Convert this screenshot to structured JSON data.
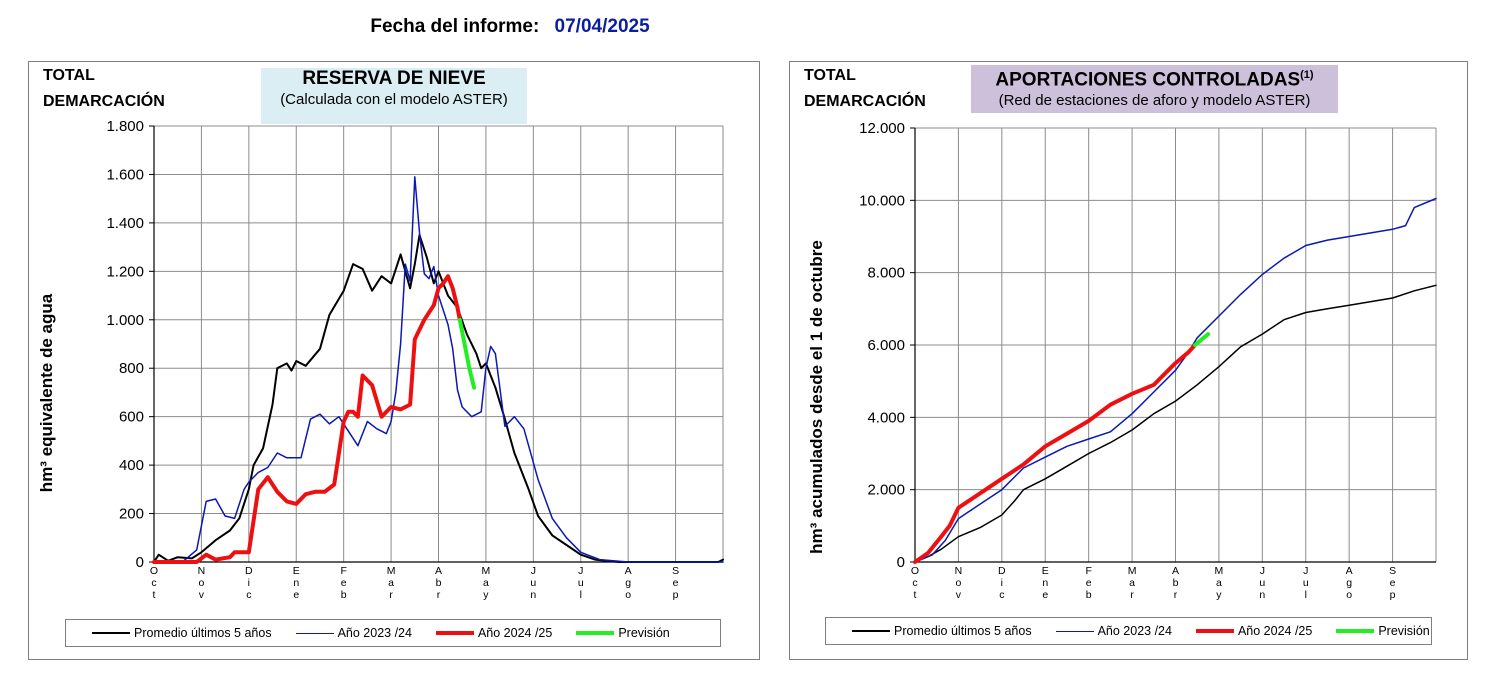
{
  "report": {
    "label": "Fecha del informe:",
    "date": "07/04/2025"
  },
  "colors": {
    "promedio": "#000000",
    "y2324": "#0a18b4",
    "y2425": "#ee1010",
    "prevision": "#22ee22",
    "title_left_bg": "#daeef3",
    "title_right_bg": "#ccc0da",
    "report_date": "#0c1e9e"
  },
  "legend": [
    {
      "name": "Promedio últimos 5 años",
      "color": "#000000",
      "width": 2
    },
    {
      "name": "Año 2023 /24",
      "color": "#0a18b4",
      "width": 1.5
    },
    {
      "name": "Año 2024 /25",
      "color": "#ee1010",
      "width": 4
    },
    {
      "name": "Previsión",
      "color": "#22ee22",
      "width": 4
    }
  ],
  "panels": [
    {
      "region_line1": "TOTAL",
      "region_line2": "DEMARCACIÓN",
      "title": "RESERVA DE NIEVE",
      "subtitle": "(Calculada con el modelo ASTER)",
      "ylabel": "hm³ equivalente de agua"
    },
    {
      "region_line1": "TOTAL",
      "region_line2": "DEMARCACIÓN",
      "title": "APORTACIONES CONTROLADAS",
      "title_sup": "(1)",
      "subtitle": "(Red de estaciones de aforo y modelo ASTER)",
      "ylabel": "hm³ acumulados desde el 1 de octubre"
    }
  ],
  "chart_data": [
    {
      "type": "line",
      "title": "RESERVA DE NIEVE",
      "subtitle": "(Calculada con el modelo ASTER)",
      "ylabel": "hm³ equivalente de agua",
      "months": [
        "Oct",
        "Nov",
        "Dic",
        "Ene",
        "Feb",
        "Mar",
        "Abr",
        "May",
        "Jun",
        "Jul",
        "Ago",
        "Sep"
      ],
      "xlim": [
        0,
        12
      ],
      "ylim": [
        0,
        1800
      ],
      "yticks": [
        0,
        200,
        400,
        600,
        800,
        1000,
        1200,
        1400,
        1600,
        1800
      ],
      "ytick_labels": [
        "0",
        "200",
        "400",
        "600",
        "800",
        "1.000",
        "1.200",
        "1.400",
        "1.600",
        "1.800"
      ],
      "grid": true,
      "legend_position": "bottom",
      "series": [
        {
          "name": "Promedio últimos 5 años",
          "color": "#000000",
          "width": 2,
          "points": [
            [
              0,
              0
            ],
            [
              0.1,
              30
            ],
            [
              0.3,
              5
            ],
            [
              0.5,
              20
            ],
            [
              0.8,
              15
            ],
            [
              1.0,
              40
            ],
            [
              1.3,
              90
            ],
            [
              1.6,
              130
            ],
            [
              1.8,
              180
            ],
            [
              2.0,
              300
            ],
            [
              2.1,
              400
            ],
            [
              2.3,
              470
            ],
            [
              2.5,
              650
            ],
            [
              2.6,
              800
            ],
            [
              2.8,
              820
            ],
            [
              2.9,
              790
            ],
            [
              3.0,
              830
            ],
            [
              3.2,
              810
            ],
            [
              3.5,
              880
            ],
            [
              3.7,
              1020
            ],
            [
              4.0,
              1120
            ],
            [
              4.2,
              1230
            ],
            [
              4.4,
              1210
            ],
            [
              4.6,
              1120
            ],
            [
              4.8,
              1180
            ],
            [
              5.0,
              1150
            ],
            [
              5.2,
              1270
            ],
            [
              5.4,
              1130
            ],
            [
              5.5,
              1230
            ],
            [
              5.6,
              1350
            ],
            [
              5.75,
              1260
            ],
            [
              5.9,
              1150
            ],
            [
              6.0,
              1200
            ],
            [
              6.2,
              1100
            ],
            [
              6.4,
              1050
            ],
            [
              6.6,
              940
            ],
            [
              6.8,
              860
            ],
            [
              6.9,
              800
            ],
            [
              7.0,
              820
            ],
            [
              7.2,
              720
            ],
            [
              7.4,
              590
            ],
            [
              7.6,
              450
            ],
            [
              7.9,
              300
            ],
            [
              8.1,
              190
            ],
            [
              8.4,
              110
            ],
            [
              8.7,
              70
            ],
            [
              9.0,
              30
            ],
            [
              9.3,
              10
            ],
            [
              9.8,
              0
            ],
            [
              11.9,
              0
            ],
            [
              12.0,
              10
            ]
          ]
        },
        {
          "name": "Año 2023 /24",
          "color": "#0a18b4",
          "width": 1.5,
          "points": [
            [
              0,
              0
            ],
            [
              0.6,
              0
            ],
            [
              0.9,
              50
            ],
            [
              1.1,
              250
            ],
            [
              1.3,
              260
            ],
            [
              1.5,
              190
            ],
            [
              1.7,
              180
            ],
            [
              1.9,
              300
            ],
            [
              2.0,
              330
            ],
            [
              2.2,
              370
            ],
            [
              2.4,
              390
            ],
            [
              2.6,
              450
            ],
            [
              2.8,
              430
            ],
            [
              3.1,
              430
            ],
            [
              3.3,
              590
            ],
            [
              3.5,
              610
            ],
            [
              3.7,
              570
            ],
            [
              3.9,
              600
            ],
            [
              4.1,
              540
            ],
            [
              4.3,
              480
            ],
            [
              4.5,
              580
            ],
            [
              4.7,
              550
            ],
            [
              4.9,
              530
            ],
            [
              5.0,
              580
            ],
            [
              5.1,
              700
            ],
            [
              5.2,
              900
            ],
            [
              5.3,
              1230
            ],
            [
              5.4,
              1160
            ],
            [
              5.5,
              1590
            ],
            [
              5.6,
              1360
            ],
            [
              5.7,
              1190
            ],
            [
              5.8,
              1170
            ],
            [
              5.9,
              1220
            ],
            [
              6.0,
              1100
            ],
            [
              6.2,
              980
            ],
            [
              6.3,
              880
            ],
            [
              6.4,
              710
            ],
            [
              6.5,
              640
            ],
            [
              6.7,
              600
            ],
            [
              6.9,
              620
            ],
            [
              7.0,
              800
            ],
            [
              7.1,
              890
            ],
            [
              7.2,
              860
            ],
            [
              7.4,
              560
            ],
            [
              7.6,
              600
            ],
            [
              7.8,
              550
            ],
            [
              8.1,
              340
            ],
            [
              8.4,
              180
            ],
            [
              8.7,
              100
            ],
            [
              9.0,
              40
            ],
            [
              9.4,
              10
            ],
            [
              10.0,
              0
            ],
            [
              12.0,
              0
            ]
          ]
        },
        {
          "name": "Año 2024 /25",
          "color": "#ee1010",
          "width": 4,
          "points": [
            [
              0,
              0
            ],
            [
              0.9,
              0
            ],
            [
              1.1,
              30
            ],
            [
              1.3,
              10
            ],
            [
              1.6,
              20
            ],
            [
              1.7,
              40
            ],
            [
              2.0,
              40
            ],
            [
              2.2,
              300
            ],
            [
              2.4,
              350
            ],
            [
              2.6,
              290
            ],
            [
              2.8,
              250
            ],
            [
              3.0,
              240
            ],
            [
              3.2,
              280
            ],
            [
              3.4,
              290
            ],
            [
              3.6,
              290
            ],
            [
              3.8,
              320
            ],
            [
              4.0,
              580
            ],
            [
              4.1,
              620
            ],
            [
              4.2,
              620
            ],
            [
              4.3,
              600
            ],
            [
              4.4,
              770
            ],
            [
              4.6,
              730
            ],
            [
              4.8,
              600
            ],
            [
              5.0,
              640
            ],
            [
              5.2,
              630
            ],
            [
              5.4,
              650
            ],
            [
              5.5,
              920
            ],
            [
              5.7,
              1000
            ],
            [
              5.9,
              1060
            ],
            [
              6.0,
              1130
            ],
            [
              6.1,
              1150
            ],
            [
              6.2,
              1180
            ],
            [
              6.3,
              1130
            ],
            [
              6.4,
              1050
            ],
            [
              6.45,
              1000
            ]
          ]
        },
        {
          "name": "Previsión",
          "color": "#22ee22",
          "width": 4,
          "points": [
            [
              6.45,
              1000
            ],
            [
              6.55,
              900
            ],
            [
              6.65,
              800
            ],
            [
              6.75,
              720
            ]
          ]
        }
      ]
    },
    {
      "type": "line",
      "title": "APORTACIONES CONTROLADAS",
      "subtitle": "(Red de estaciones de aforo y modelo ASTER)",
      "ylabel": "hm³ acumulados desde el 1 de octubre",
      "months": [
        "Oct",
        "Nov",
        "Dic",
        "Ene",
        "Feb",
        "Mar",
        "Abr",
        "May",
        "Jun",
        "Jul",
        "Ago",
        "Sep"
      ],
      "xlim": [
        0,
        12
      ],
      "ylim": [
        0,
        12000
      ],
      "yticks": [
        0,
        2000,
        4000,
        6000,
        8000,
        10000,
        12000
      ],
      "ytick_labels": [
        "0",
        "2.000",
        "4.000",
        "6.000",
        "8.000",
        "10.000",
        "12.000"
      ],
      "grid": true,
      "legend_position": "bottom",
      "series": [
        {
          "name": "Promedio últimos 5 años",
          "color": "#000000",
          "width": 1.5,
          "points": [
            [
              0,
              0
            ],
            [
              0.3,
              150
            ],
            [
              0.6,
              350
            ],
            [
              1.0,
              700
            ],
            [
              1.5,
              950
            ],
            [
              2.0,
              1300
            ],
            [
              2.3,
              1700
            ],
            [
              2.5,
              2000
            ],
            [
              3.0,
              2300
            ],
            [
              3.5,
              2650
            ],
            [
              4.0,
              3000
            ],
            [
              4.5,
              3300
            ],
            [
              5.0,
              3650
            ],
            [
              5.5,
              4100
            ],
            [
              6.0,
              4450
            ],
            [
              6.5,
              4900
            ],
            [
              7.0,
              5400
            ],
            [
              7.5,
              5950
            ],
            [
              8.0,
              6300
            ],
            [
              8.5,
              6700
            ],
            [
              9.0,
              6900
            ],
            [
              9.5,
              7000
            ],
            [
              10.0,
              7100
            ],
            [
              10.5,
              7200
            ],
            [
              11.0,
              7300
            ],
            [
              11.5,
              7500
            ],
            [
              12.0,
              7650
            ]
          ]
        },
        {
          "name": "Año 2023 /24",
          "color": "#0a18b4",
          "width": 1.5,
          "points": [
            [
              0,
              0
            ],
            [
              0.4,
              200
            ],
            [
              0.7,
              600
            ],
            [
              1.0,
              1200
            ],
            [
              1.5,
              1600
            ],
            [
              2.0,
              2000
            ],
            [
              2.5,
              2600
            ],
            [
              3.0,
              2900
            ],
            [
              3.5,
              3200
            ],
            [
              4.0,
              3400
            ],
            [
              4.5,
              3600
            ],
            [
              5.0,
              4100
            ],
            [
              5.5,
              4700
            ],
            [
              6.0,
              5300
            ],
            [
              6.3,
              5800
            ],
            [
              6.5,
              6200
            ],
            [
              7.0,
              6800
            ],
            [
              7.5,
              7400
            ],
            [
              8.0,
              7950
            ],
            [
              8.5,
              8400
            ],
            [
              9.0,
              8750
            ],
            [
              9.5,
              8900
            ],
            [
              10.0,
              9000
            ],
            [
              10.5,
              9100
            ],
            [
              11.0,
              9200
            ],
            [
              11.3,
              9300
            ],
            [
              11.5,
              9800
            ],
            [
              12.0,
              10050
            ]
          ]
        },
        {
          "name": "Año 2024 /25",
          "color": "#ee1010",
          "width": 4,
          "points": [
            [
              0,
              0
            ],
            [
              0.3,
              250
            ],
            [
              0.6,
              700
            ],
            [
              0.8,
              1000
            ],
            [
              1.0,
              1500
            ],
            [
              1.5,
              1900
            ],
            [
              2.0,
              2300
            ],
            [
              2.5,
              2700
            ],
            [
              3.0,
              3200
            ],
            [
              3.5,
              3550
            ],
            [
              4.0,
              3900
            ],
            [
              4.5,
              4350
            ],
            [
              5.0,
              4650
            ],
            [
              5.5,
              4900
            ],
            [
              6.0,
              5500
            ],
            [
              6.3,
              5800
            ],
            [
              6.45,
              6000
            ]
          ]
        },
        {
          "name": "Previsión",
          "color": "#22ee22",
          "width": 4,
          "points": [
            [
              6.45,
              6000
            ],
            [
              6.6,
              6150
            ],
            [
              6.75,
              6300
            ]
          ]
        }
      ]
    }
  ]
}
